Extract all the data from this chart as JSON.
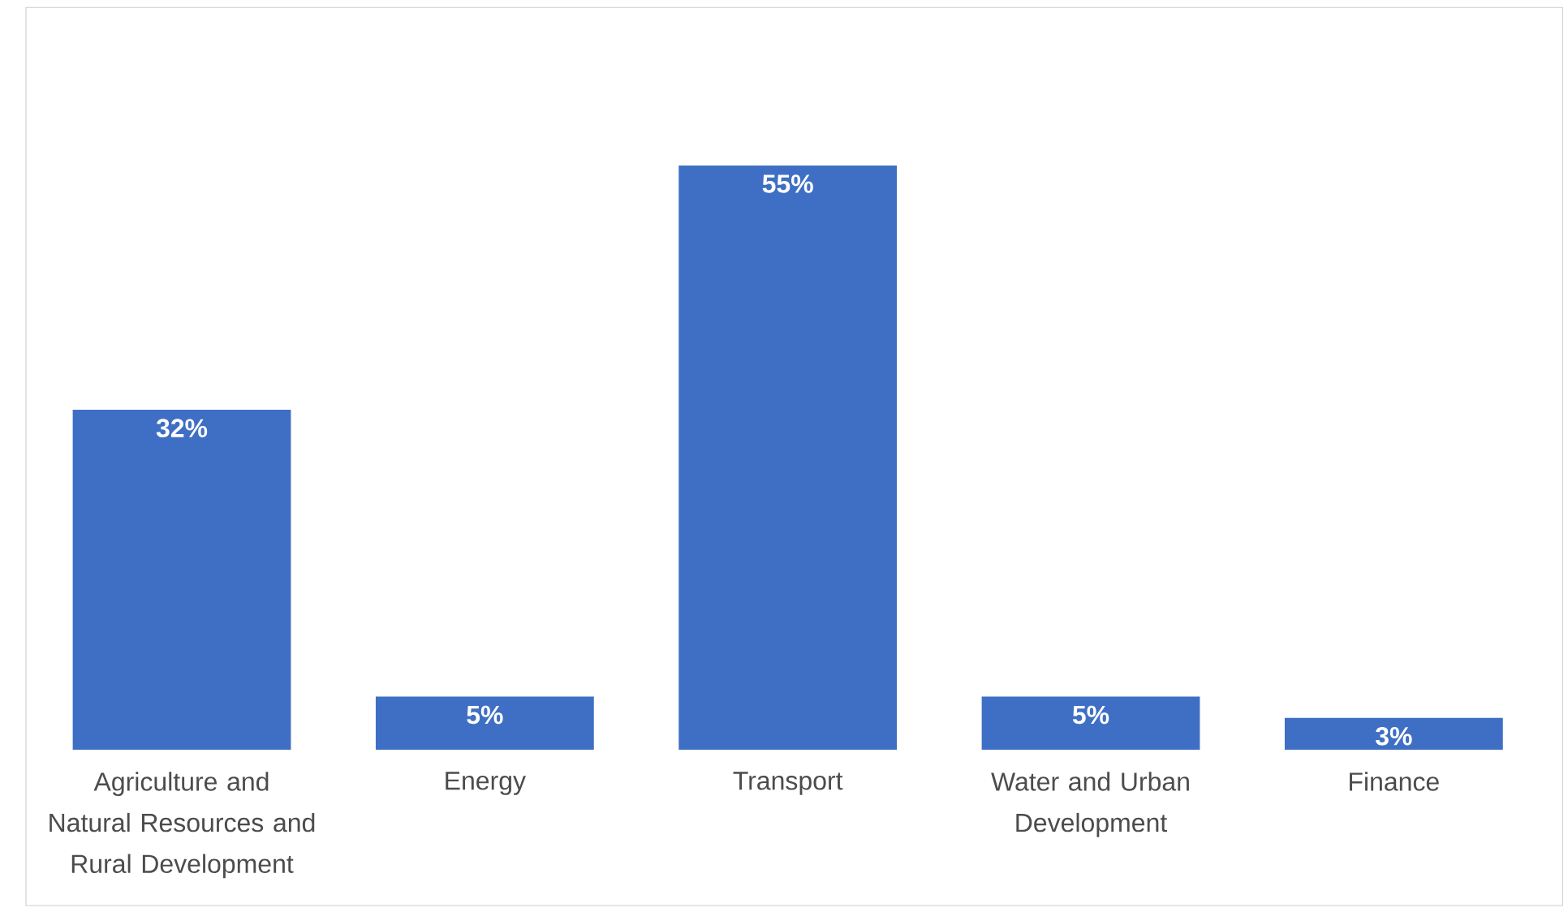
{
  "chart_data": {
    "type": "bar",
    "categories": [
      "Agriculture and Natural Resources and Rural Development",
      "Energy",
      "Transport",
      "Water and Urban Development",
      "Finance"
    ],
    "values": [
      32,
      5,
      55,
      5,
      3
    ],
    "value_labels": [
      "32%",
      "5%",
      "55%",
      "5%",
      "3%"
    ],
    "color": "#3f6fc4"
  }
}
